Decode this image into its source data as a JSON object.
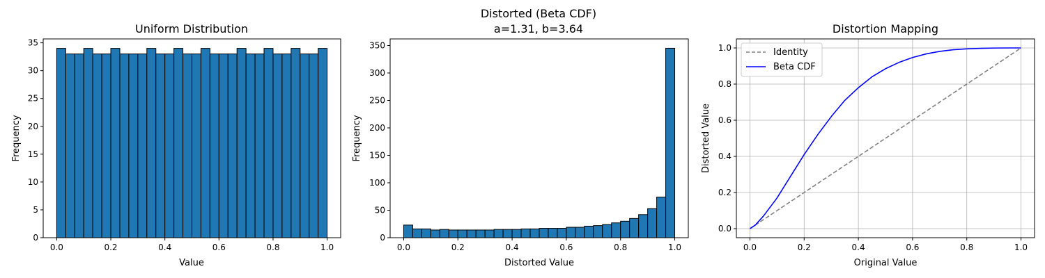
{
  "chart_data": [
    {
      "type": "bar",
      "title": "Uniform Distribution",
      "xlabel": "Value",
      "ylabel": "Frequency",
      "xlim": [
        -0.05,
        1.05
      ],
      "ylim": [
        0,
        35.7
      ],
      "xticks": [
        0.0,
        0.2,
        0.4,
        0.6,
        0.8,
        1.0
      ],
      "xtick_labels": [
        "0.0",
        "0.2",
        "0.4",
        "0.6",
        "0.8",
        "1.0"
      ],
      "yticks": [
        0,
        5,
        10,
        15,
        20,
        25,
        30,
        35
      ],
      "ytick_labels": [
        "0",
        "5",
        "10",
        "15",
        "20",
        "25",
        "30",
        "35"
      ],
      "bin_range": [
        0,
        1
      ],
      "bar_color": "#1f77b4",
      "edge_color": "#000000",
      "values": [
        34,
        33,
        33,
        34,
        33,
        33,
        34,
        33,
        33,
        33,
        34,
        33,
        33,
        34,
        33,
        33,
        34,
        33,
        33,
        33,
        34,
        33,
        33,
        34,
        33,
        33,
        34,
        33,
        33,
        34
      ],
      "grid": false
    },
    {
      "type": "bar",
      "title": "Distorted (Beta CDF)",
      "subtitle": "a=1.31, b=3.64",
      "xlabel": "Distorted Value",
      "ylabel": "Frequency",
      "xlim": [
        -0.05,
        1.05
      ],
      "ylim": [
        0,
        362
      ],
      "xticks": [
        0.0,
        0.2,
        0.4,
        0.6,
        0.8,
        1.0
      ],
      "xtick_labels": [
        "0.0",
        "0.2",
        "0.4",
        "0.6",
        "0.8",
        "1.0"
      ],
      "yticks": [
        0,
        50,
        100,
        150,
        200,
        250,
        300,
        350
      ],
      "ytick_labels": [
        "0",
        "50",
        "100",
        "150",
        "200",
        "250",
        "300",
        "350"
      ],
      "bin_range": [
        0,
        1
      ],
      "bar_color": "#1f77b4",
      "edge_color": "#000000",
      "values": [
        23,
        16,
        16,
        14,
        15,
        14,
        14,
        14,
        14,
        14,
        15,
        15,
        15,
        16,
        16,
        17,
        17,
        17,
        19,
        19,
        21,
        22,
        24,
        27,
        30,
        35,
        42,
        53,
        74,
        345
      ],
      "grid": false
    },
    {
      "type": "line",
      "title": "Distortion Mapping",
      "xlabel": "Original Value",
      "ylabel": "Distorted Value",
      "xlim": [
        -0.05,
        1.05
      ],
      "ylim": [
        -0.05,
        1.05
      ],
      "xticks": [
        0.0,
        0.2,
        0.4,
        0.6,
        0.8,
        1.0
      ],
      "xtick_labels": [
        "0.0",
        "0.2",
        "0.4",
        "0.6",
        "0.8",
        "1.0"
      ],
      "yticks": [
        0.0,
        0.2,
        0.4,
        0.6,
        0.8,
        1.0
      ],
      "ytick_labels": [
        "0.0",
        "0.2",
        "0.4",
        "0.6",
        "0.8",
        "1.0"
      ],
      "grid": true,
      "legend_position": "top-left",
      "series": [
        {
          "name": "Identity",
          "color": "#808080",
          "dash": "dashed",
          "x": [
            0.0,
            1.0
          ],
          "y": [
            0.0,
            1.0
          ]
        },
        {
          "name": "Beta CDF",
          "color": "#0000ff",
          "dash": "solid",
          "x": [
            0.0,
            0.02,
            0.05,
            0.1,
            0.15,
            0.2,
            0.25,
            0.3,
            0.35,
            0.4,
            0.45,
            0.5,
            0.55,
            0.6,
            0.65,
            0.7,
            0.75,
            0.8,
            0.85,
            0.9,
            0.95,
            1.0
          ],
          "y": [
            0.0,
            0.02,
            0.07,
            0.17,
            0.29,
            0.41,
            0.52,
            0.62,
            0.71,
            0.78,
            0.84,
            0.885,
            0.92,
            0.947,
            0.967,
            0.981,
            0.99,
            0.995,
            0.998,
            0.9995,
            1.0,
            1.0
          ]
        }
      ]
    }
  ]
}
